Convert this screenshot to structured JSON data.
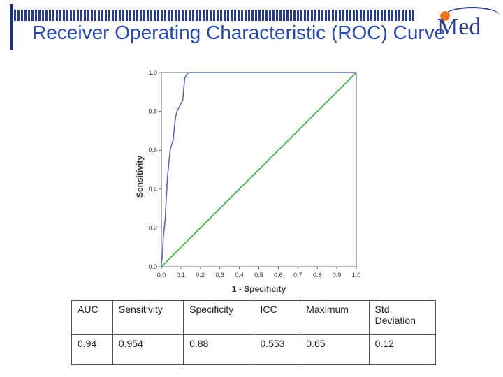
{
  "slide": {
    "title": "Receiver Operating Characteristic (ROC) Curve",
    "logo_text": "Med"
  },
  "chart_data": {
    "type": "line",
    "xlabel": "1 - Specificity",
    "ylabel": "Sensitivity",
    "xlim": [
      0.0,
      1.0
    ],
    "ylim": [
      0.0,
      1.0
    ],
    "x_ticks": [
      "0.0",
      "0.1",
      "0.2",
      "0.3",
      "0.4",
      "0.5",
      "0.6",
      "0.7",
      "0.8",
      "0.9",
      "1.0"
    ],
    "y_ticks": [
      "0.0",
      "0.2",
      "0.4",
      "0.6",
      "0.8",
      "1.0"
    ],
    "grid": false,
    "series": [
      {
        "color": "#5b6fb0",
        "points": [
          [
            0.0,
            0.0
          ],
          [
            0.0,
            0.02
          ],
          [
            0.005,
            0.05
          ],
          [
            0.01,
            0.15
          ],
          [
            0.015,
            0.2
          ],
          [
            0.02,
            0.25
          ],
          [
            0.022,
            0.3
          ],
          [
            0.025,
            0.35
          ],
          [
            0.028,
            0.4
          ],
          [
            0.03,
            0.45
          ],
          [
            0.035,
            0.5
          ],
          [
            0.04,
            0.55
          ],
          [
            0.045,
            0.6
          ],
          [
            0.05,
            0.62
          ],
          [
            0.06,
            0.65
          ],
          [
            0.065,
            0.7
          ],
          [
            0.07,
            0.75
          ],
          [
            0.075,
            0.78
          ],
          [
            0.08,
            0.8
          ],
          [
            0.09,
            0.82
          ],
          [
            0.11,
            0.86
          ],
          [
            0.115,
            0.92
          ],
          [
            0.12,
            0.97
          ],
          [
            0.13,
            0.99
          ],
          [
            0.14,
            1.0
          ],
          [
            0.2,
            1.0
          ],
          [
            0.22,
            1.0
          ],
          [
            0.25,
            1.01
          ],
          [
            1.0,
            1.01
          ]
        ]
      },
      {
        "color": "#3aaa3a",
        "points": [
          [
            0.0,
            0.0
          ],
          [
            1.0,
            1.0
          ]
        ]
      }
    ]
  },
  "table": {
    "headers": [
      "AUC",
      "Sensitivity",
      "Specificity",
      "ICC",
      "Maximum",
      "Std.\nDeviation"
    ],
    "values": [
      "0.94",
      "0.954",
      "0.88",
      "0.553",
      "0.65",
      "0.12"
    ]
  }
}
